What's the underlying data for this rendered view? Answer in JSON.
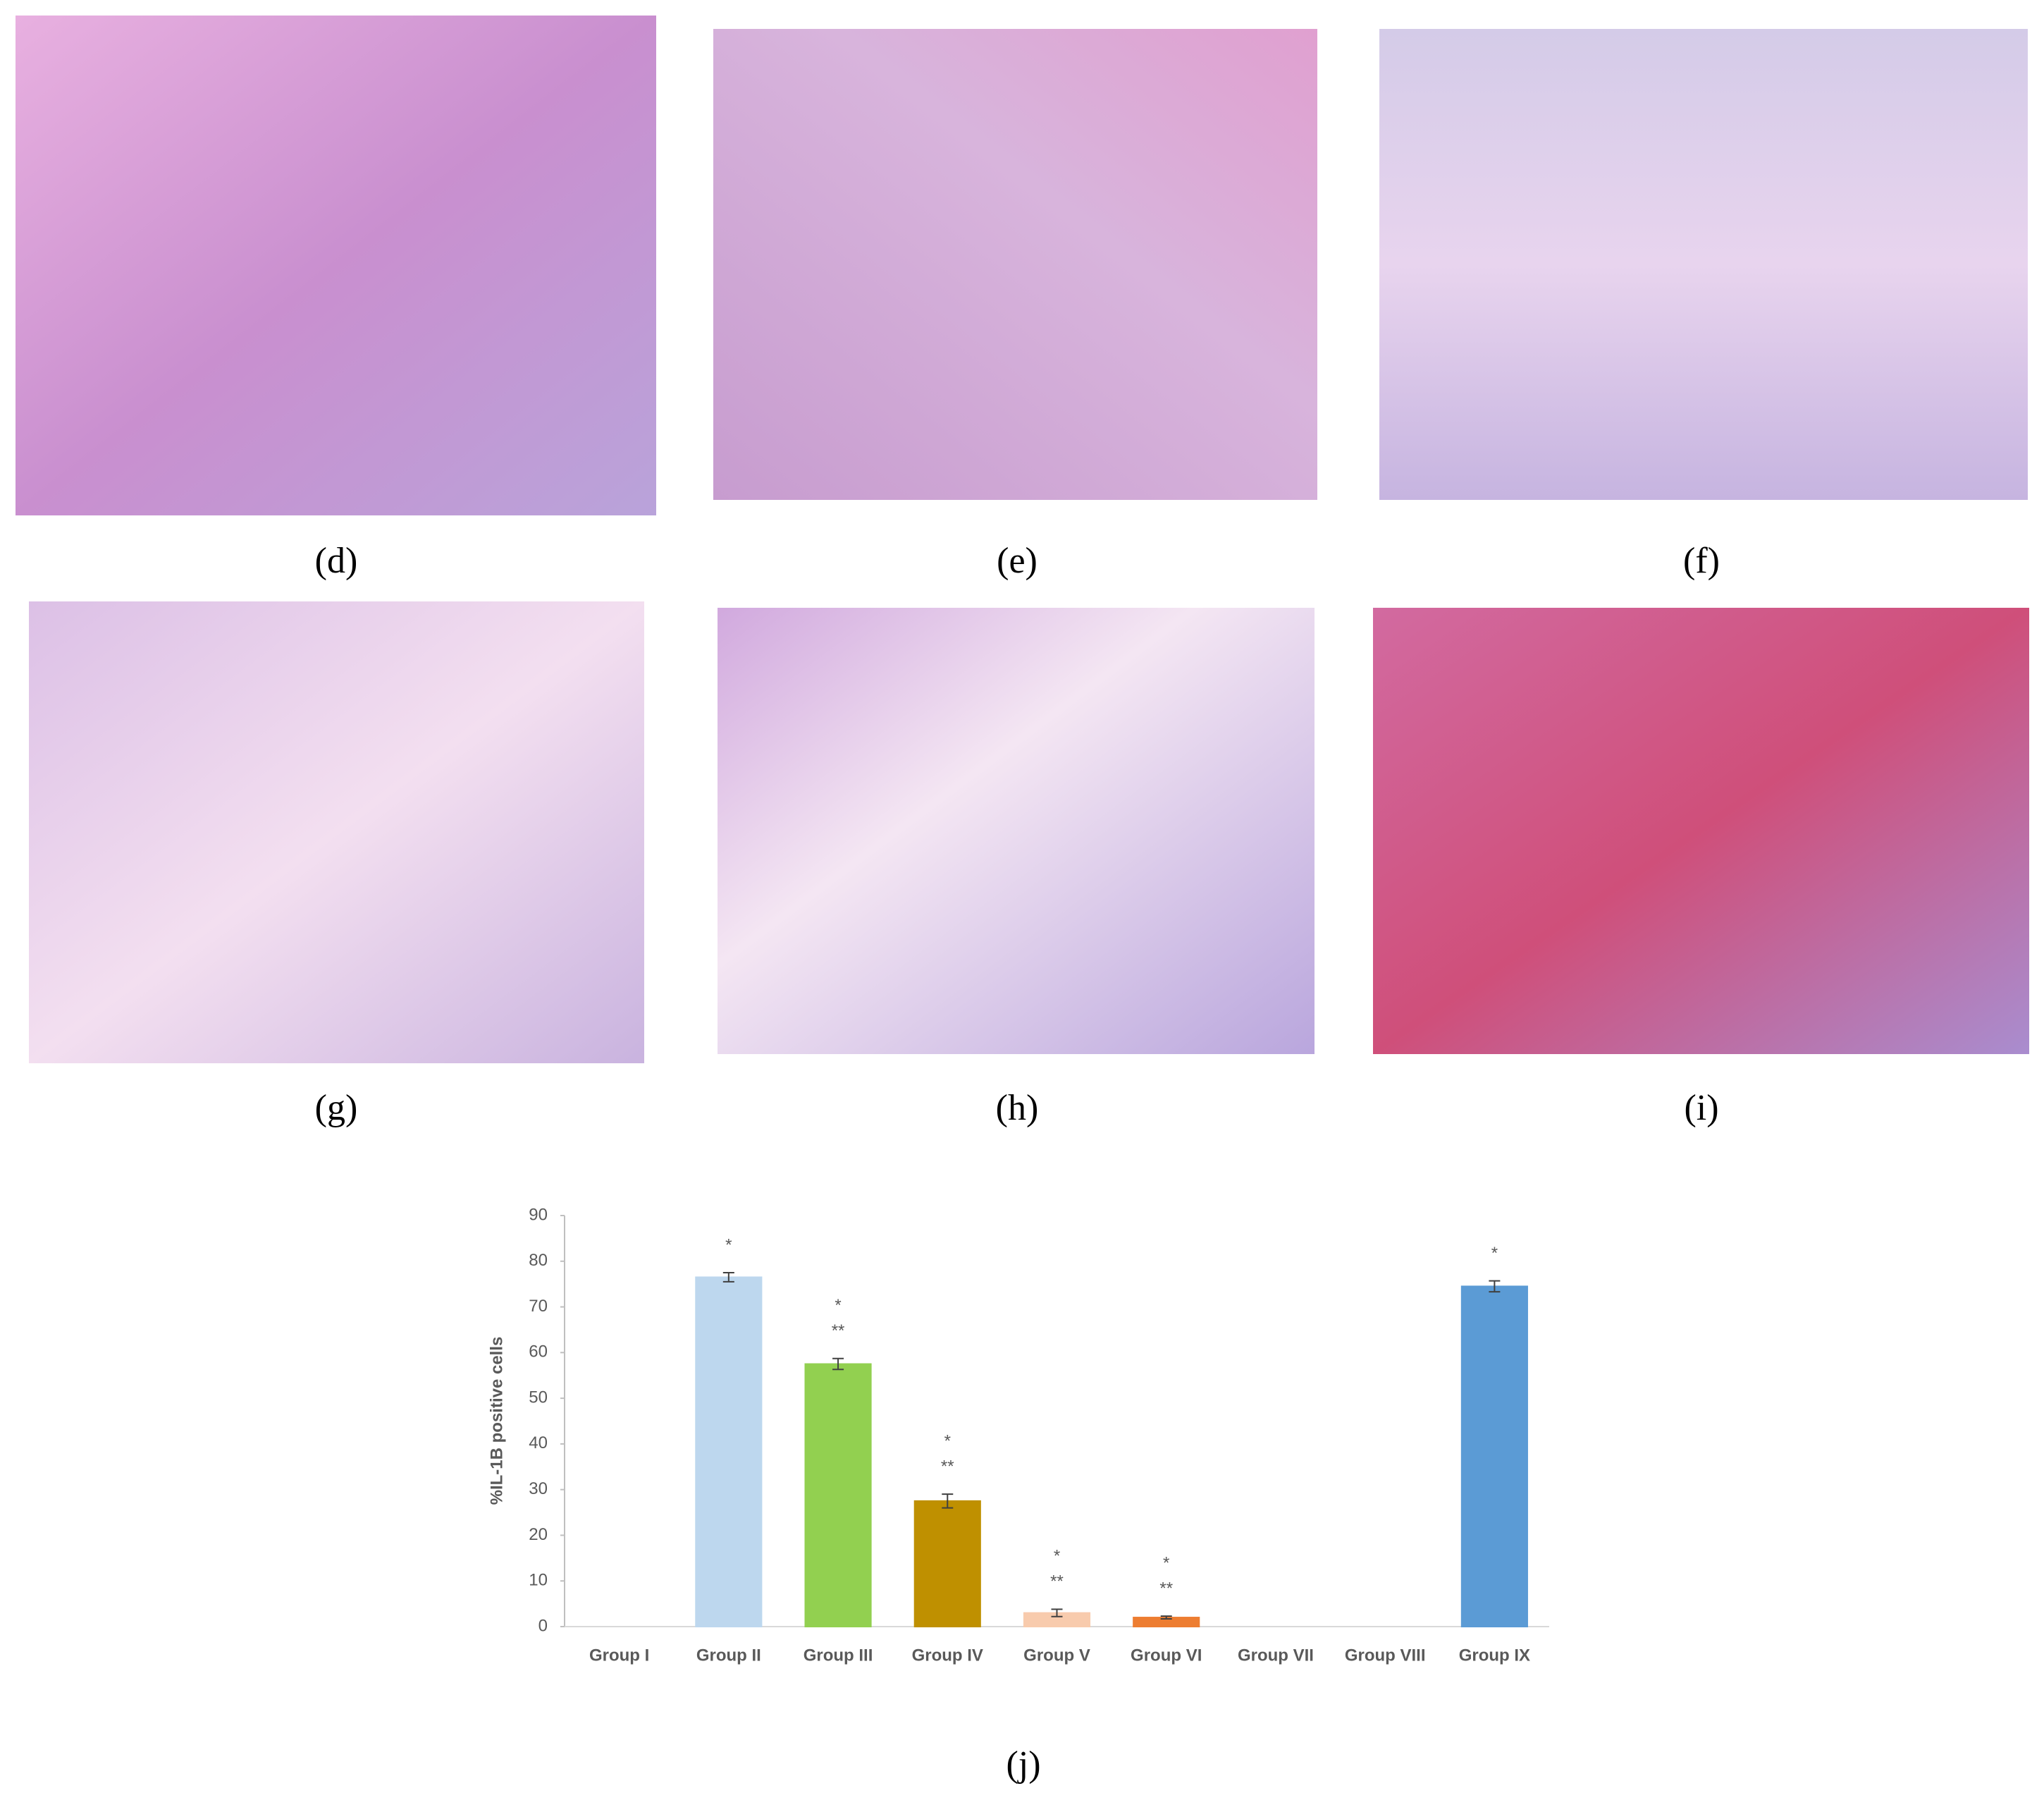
{
  "panels": [
    {
      "label": "(d)"
    },
    {
      "label": "(e)"
    },
    {
      "label": "(f)"
    },
    {
      "label": "(g)"
    },
    {
      "label": "(h)"
    },
    {
      "label": "(i)"
    }
  ],
  "chart_label": "(j)",
  "chart_data": {
    "type": "bar",
    "y_label": "%IL-1B positive cells",
    "categories": [
      "Group I",
      "Group II",
      "Group III",
      "Group IV",
      "Group V",
      "Group VI",
      "Group VII",
      "Group VIII",
      "Group IX"
    ],
    "values": [
      0,
      76.5,
      57.5,
      27.5,
      3,
      2,
      0,
      0,
      74.5
    ],
    "errors": [
      0,
      1,
      1.2,
      1.5,
      0.8,
      0.3,
      0,
      0,
      1.2
    ],
    "colors": [
      "#a6a6a6",
      "#bdd7ee",
      "#92d050",
      "#bf9000",
      "#f8cbad",
      "#ed7d31",
      "#a6a6a6",
      "#a6a6a6",
      "#5b9bd5"
    ],
    "sig_top": [
      null,
      "*",
      "*",
      "*",
      "*",
      "*",
      null,
      null,
      "*"
    ],
    "sig_bottom": [
      null,
      null,
      "**",
      "**",
      "**",
      "**",
      null,
      null,
      null
    ],
    "ylim": [
      0,
      90
    ],
    "yticks": [
      0,
      10,
      20,
      30,
      40,
      50,
      60,
      70,
      80,
      90
    ],
    "grid": false
  }
}
